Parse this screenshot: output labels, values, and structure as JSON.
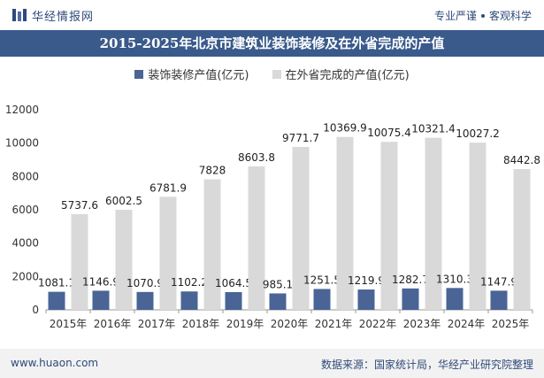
{
  "header": {
    "brand_name": "华经情报网",
    "tagline_left": "专业严谨",
    "tagline_right": "客观科学"
  },
  "footer": {
    "site": "www.huaon.com",
    "source": "数据来源：国家统计局，华经产业研究院整理"
  },
  "colors": {
    "series1": "#4a6496",
    "series2": "#d9d9d9",
    "title_bg": "#3a5a8c"
  },
  "chart_data": {
    "type": "bar",
    "title": "2015-2025年北京市建筑业装饰装修及在外省完成的产值",
    "categories": [
      "2015年",
      "2016年",
      "2017年",
      "2018年",
      "2019年",
      "2020年",
      "2021年",
      "2022年",
      "2023年",
      "2024年",
      "2025年"
    ],
    "series": [
      {
        "name": "装饰装修产值(亿元)",
        "values": [
          1081.1,
          1146.9,
          1070.9,
          1102.2,
          1064.5,
          985.1,
          1251.5,
          1219.9,
          1282.7,
          1310.3,
          1147.9
        ]
      },
      {
        "name": "在外省完成的产值(亿元)",
        "values": [
          5737.6,
          6002.5,
          6781.9,
          7828,
          8603.8,
          9771.7,
          10369.9,
          10075.4,
          10321.4,
          10027.2,
          8442.8
        ]
      }
    ],
    "yticks": [
      0,
      2000,
      4000,
      6000,
      8000,
      10000,
      12000
    ],
    "ylim": [
      0,
      12000
    ],
    "xlabel": "",
    "ylabel": "",
    "legend_position": "top"
  }
}
